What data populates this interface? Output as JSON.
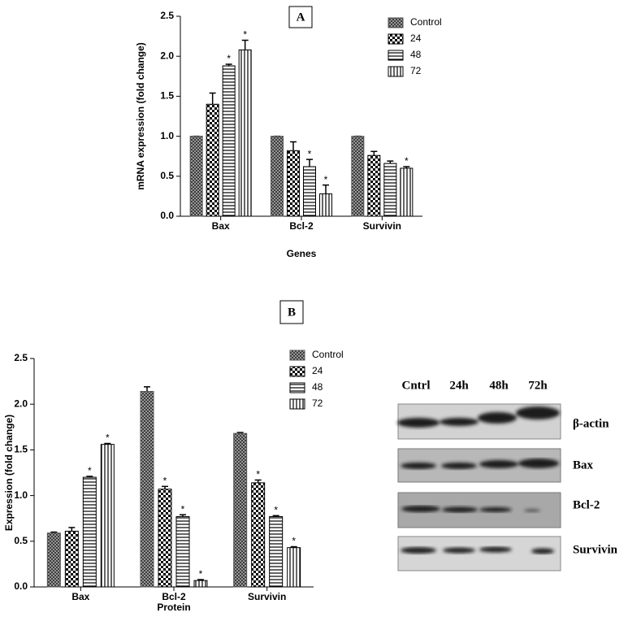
{
  "chart_data": [
    {
      "type": "bar",
      "panel": "A",
      "y_label": "mRNA expression (fold change)",
      "x_label": "Genes",
      "categories": [
        "Bax",
        "Bcl-2",
        "Survivin"
      ],
      "ylim": [
        0,
        2.5
      ],
      "yticks": [
        {
          "value": 0,
          "label": "0.0"
        },
        0.5,
        {
          "value": 1,
          "label": "1.0"
        },
        1.5,
        {
          "value": 2,
          "label": "2.0"
        },
        2.5
      ],
      "series": [
        {
          "name": "Control",
          "pattern": "crosshatch",
          "color": "#555555",
          "values": [
            1.0,
            1.0,
            1.0
          ],
          "errors": [
            0.0,
            0.0,
            0.0
          ],
          "significance": [
            null,
            null,
            null
          ]
        },
        {
          "name": "24",
          "pattern": "checker",
          "color": "#000000",
          "values": [
            1.4,
            0.82,
            0.76
          ],
          "errors": [
            0.14,
            0.11,
            0.05
          ],
          "significance": [
            null,
            null,
            null
          ]
        },
        {
          "name": "48",
          "pattern": "hlines",
          "color": "#000000",
          "values": [
            1.88,
            0.62,
            0.66
          ],
          "errors": [
            0.02,
            0.09,
            0.03
          ],
          "significance": [
            "*",
            "*",
            null
          ]
        },
        {
          "name": "72",
          "pattern": "vlines",
          "color": "#000000",
          "values": [
            2.08,
            0.28,
            0.6
          ],
          "errors": [
            0.12,
            0.11,
            0.02
          ],
          "significance": [
            "*",
            "*",
            "*"
          ]
        }
      ]
    },
    {
      "type": "bar",
      "panel": "B",
      "y_label": "Expression (fold change)",
      "x_label": "Protein",
      "categories": [
        "Bax",
        "Bcl-2",
        "Survivin"
      ],
      "ylim": [
        0,
        2.5
      ],
      "yticks": [
        {
          "value": 0,
          "label": "0.0"
        },
        0.5,
        {
          "value": 1,
          "label": "1.0"
        },
        1.5,
        {
          "value": 2,
          "label": "2.0"
        },
        2.5
      ],
      "series": [
        {
          "name": "Control",
          "pattern": "crosshatch",
          "color": "#555555",
          "values": [
            0.59,
            2.14,
            1.68
          ],
          "errors": [
            0.01,
            0.05,
            0.01
          ],
          "significance": [
            null,
            null,
            null
          ]
        },
        {
          "name": "24",
          "pattern": "checker",
          "color": "#000000",
          "values": [
            0.61,
            1.07,
            1.14
          ],
          "errors": [
            0.04,
            0.03,
            0.03
          ],
          "significance": [
            null,
            "*",
            "*"
          ]
        },
        {
          "name": "48",
          "pattern": "hlines",
          "color": "#000000",
          "values": [
            1.2,
            0.77,
            0.77
          ],
          "errors": [
            0.01,
            0.02,
            0.01
          ],
          "significance": [
            "*",
            "*",
            "*"
          ]
        },
        {
          "name": "72",
          "pattern": "vlines",
          "color": "#000000",
          "values": [
            1.56,
            0.07,
            0.43
          ],
          "errors": [
            0.01,
            0.01,
            0.01
          ],
          "significance": [
            "*",
            "*",
            "*"
          ]
        }
      ]
    }
  ],
  "blot": {
    "columns": [
      "Cntrl",
      "24h",
      "48h",
      "72h"
    ],
    "rows": [
      "β-actin",
      "Bax",
      "Bcl-2",
      "Survivin"
    ]
  }
}
